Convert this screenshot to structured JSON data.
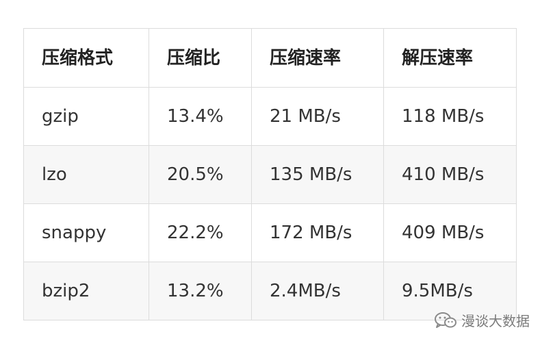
{
  "table": {
    "headers": [
      "压缩格式",
      "压缩比",
      "压缩速率",
      "解压速率"
    ],
    "rows": [
      [
        "gzip",
        "13.4%",
        "21 MB/s",
        "118 MB/s"
      ],
      [
        "lzo",
        "20.5%",
        "135 MB/s",
        "410 MB/s"
      ],
      [
        "snappy",
        "22.2%",
        "172 MB/s",
        "409 MB/s"
      ],
      [
        "bzip2",
        "13.2%",
        "2.4MB/s",
        "9.5MB/s"
      ]
    ]
  },
  "watermark": {
    "text": "漫谈大数据",
    "icon": "wechat-icon"
  }
}
